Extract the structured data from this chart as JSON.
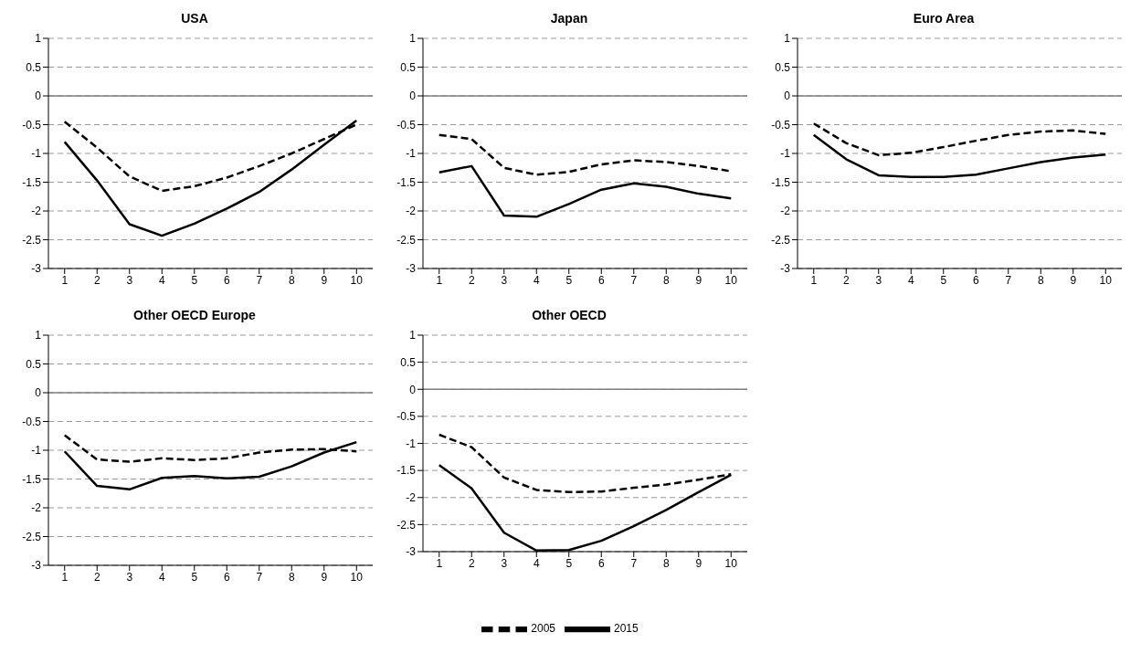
{
  "chart_data": [
    {
      "type": "line",
      "title": "USA",
      "categories": [
        "1",
        "2",
        "3",
        "4",
        "5",
        "6",
        "7",
        "8",
        "9",
        "10"
      ],
      "ylim": [
        -3,
        1
      ],
      "yticks": [
        -3,
        -2.5,
        -2,
        -1.5,
        -1,
        -0.5,
        0,
        0.5,
        1
      ],
      "grid": "y",
      "ref_lines": [
        {
          "axis": "y",
          "value": 0,
          "color": "#808080"
        }
      ],
      "series": [
        {
          "color": "#000000",
          "line_style": "dashed",
          "values": [
            -0.45,
            -0.9,
            -1.4,
            -1.65,
            -1.57,
            -1.42,
            -1.22,
            -1.0,
            -0.75,
            -0.5
          ]
        },
        {
          "color": "#000000",
          "line_style": "solid",
          "values": [
            -0.8,
            -1.47,
            -2.23,
            -2.43,
            -2.22,
            -1.96,
            -1.67,
            -1.28,
            -0.85,
            -0.43
          ]
        }
      ]
    },
    {
      "type": "line",
      "title": "Japan",
      "categories": [
        "1",
        "2",
        "3",
        "4",
        "5",
        "6",
        "7",
        "8",
        "9",
        "10"
      ],
      "ylim": [
        -3,
        1
      ],
      "yticks": [
        -3,
        -2.5,
        -2,
        -1.5,
        -1,
        -0.5,
        0,
        0.5,
        1
      ],
      "grid": "y",
      "ref_lines": [
        {
          "axis": "y",
          "value": 0,
          "color": "#808080"
        }
      ],
      "series": [
        {
          "color": "#000000",
          "line_style": "dashed",
          "values": [
            -0.68,
            -0.75,
            -1.25,
            -1.37,
            -1.32,
            -1.19,
            -1.12,
            -1.15,
            -1.22,
            -1.31
          ]
        },
        {
          "color": "#000000",
          "line_style": "solid",
          "values": [
            -1.33,
            -1.22,
            -2.08,
            -2.1,
            -1.88,
            -1.63,
            -1.52,
            -1.58,
            -1.7,
            -1.78
          ]
        }
      ]
    },
    {
      "type": "line",
      "title": "Euro Area",
      "categories": [
        "1",
        "2",
        "3",
        "4",
        "5",
        "6",
        "7",
        "8",
        "9",
        "10"
      ],
      "ylim": [
        -3,
        1
      ],
      "yticks": [
        -3,
        -2.5,
        -2,
        -1.5,
        -1,
        -0.5,
        0,
        0.5,
        1
      ],
      "grid": "y",
      "ref_lines": [
        {
          "axis": "y",
          "value": 0,
          "color": "#808080"
        }
      ],
      "series": [
        {
          "color": "#000000",
          "line_style": "dashed",
          "values": [
            -0.48,
            -0.82,
            -1.03,
            -0.99,
            -0.89,
            -0.78,
            -0.68,
            -0.62,
            -0.6,
            -0.66
          ]
        },
        {
          "color": "#000000",
          "line_style": "solid",
          "values": [
            -0.68,
            -1.1,
            -1.38,
            -1.41,
            -1.41,
            -1.37,
            -1.26,
            -1.15,
            -1.07,
            -1.02
          ]
        }
      ]
    },
    {
      "type": "line",
      "title": "Other OECD Europe",
      "categories": [
        "1",
        "2",
        "3",
        "4",
        "5",
        "6",
        "7",
        "8",
        "9",
        "10"
      ],
      "ylim": [
        -3,
        1
      ],
      "yticks": [
        -3,
        -2.5,
        -2,
        -1.5,
        -1,
        -0.5,
        0,
        0.5,
        1
      ],
      "grid": "y",
      "ref_lines": [
        {
          "axis": "y",
          "value": 0,
          "color": "#808080"
        }
      ],
      "series": [
        {
          "color": "#000000",
          "line_style": "dashed",
          "values": [
            -0.74,
            -1.16,
            -1.2,
            -1.14,
            -1.17,
            -1.14,
            -1.04,
            -0.99,
            -0.98,
            -1.02
          ]
        },
        {
          "color": "#000000",
          "line_style": "solid",
          "values": [
            -1.02,
            -1.62,
            -1.68,
            -1.48,
            -1.45,
            -1.49,
            -1.46,
            -1.28,
            -1.04,
            -0.86
          ]
        }
      ]
    },
    {
      "type": "line",
      "title": "Other OECD",
      "categories": [
        "1",
        "2",
        "3",
        "4",
        "5",
        "6",
        "7",
        "8",
        "9",
        "10"
      ],
      "ylim": [
        -3,
        1
      ],
      "yticks": [
        -3,
        -2.5,
        -2,
        -1.5,
        -1,
        -0.5,
        0,
        0.5,
        1
      ],
      "grid": "y",
      "legend": "bottom",
      "ref_lines": [
        {
          "axis": "y",
          "value": 0,
          "color": "#808080"
        }
      ],
      "series": [
        {
          "name": "2005",
          "color": "#000000",
          "line_style": "dashed",
          "values": [
            -0.84,
            -1.07,
            -1.63,
            -1.86,
            -1.9,
            -1.89,
            -1.82,
            -1.76,
            -1.67,
            -1.57
          ]
        },
        {
          "name": "2015",
          "color": "#000000",
          "line_style": "solid",
          "values": [
            -1.4,
            -1.83,
            -2.65,
            -2.98,
            -2.97,
            -2.8,
            -2.53,
            -2.23,
            -1.9,
            -1.58
          ]
        }
      ]
    }
  ]
}
